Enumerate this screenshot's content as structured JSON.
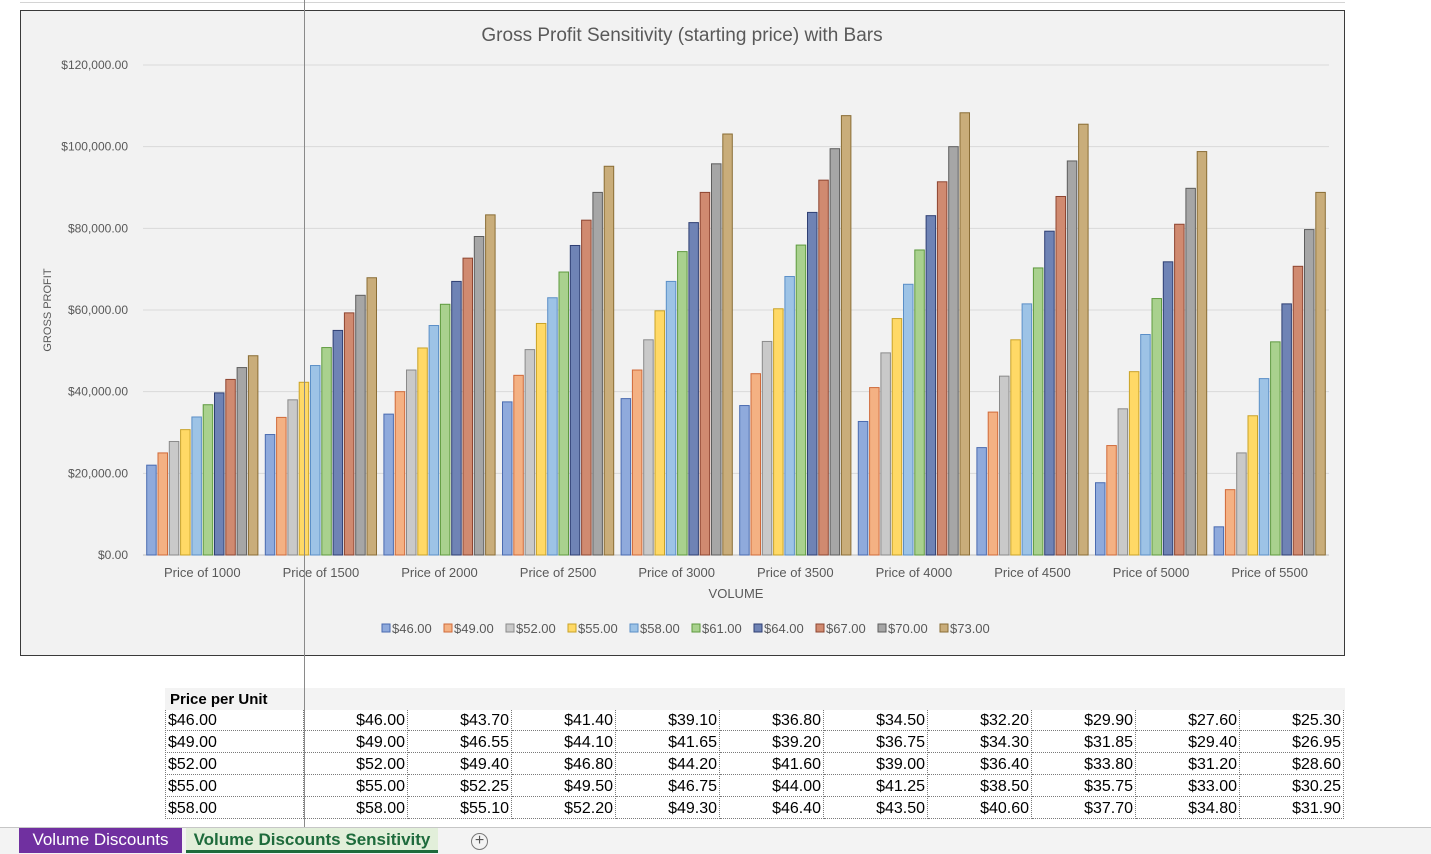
{
  "chart_data": {
    "type": "bar",
    "title": "Gross Profit Sensitivity (starting price) with Bars",
    "xlabel": "VOLUME",
    "ylabel": "GROSS PROFIT",
    "ylim": [
      0,
      120000
    ],
    "ytick_labels": [
      "$0.00",
      "$20,000.00",
      "$40,000.00",
      "$60,000.00",
      "$80,000.00",
      "$100,000.00",
      "$120,000.00"
    ],
    "grid": true,
    "legend_position": "bottom",
    "categories": [
      "Price of 1000",
      "Price of 1500",
      "Price of 2000",
      "Price of 2500",
      "Price of 3000",
      "Price of 3500",
      "Price of 4000",
      "Price of 4500",
      "Price of 5000",
      "Price of 5500"
    ],
    "series": [
      {
        "name": "$46.00",
        "color": "#8faadc",
        "stroke": "#4a6bb0",
        "values": [
          22000,
          29500,
          34500,
          37500,
          38300,
          36600,
          32700,
          26300,
          17700,
          6900
        ]
      },
      {
        "name": "$49.00",
        "color": "#f4b183",
        "stroke": "#d06a3a",
        "values": [
          25000,
          33700,
          40000,
          44000,
          45300,
          44400,
          41000,
          35000,
          26800,
          16000
        ]
      },
      {
        "name": "$52.00",
        "color": "#c9c9c9",
        "stroke": "#8a8a8a",
        "values": [
          27800,
          38000,
          45300,
          50300,
          52700,
          52300,
          49500,
          43800,
          35800,
          25000
        ]
      },
      {
        "name": "$55.00",
        "color": "#ffd966",
        "stroke": "#c9a227",
        "values": [
          30700,
          42300,
          50700,
          56700,
          59800,
          60300,
          57900,
          52700,
          44900,
          34100
        ]
      },
      {
        "name": "$58.00",
        "color": "#9dc3e6",
        "stroke": "#5b8fc7",
        "values": [
          33800,
          46400,
          56200,
          63000,
          67000,
          68200,
          66300,
          61500,
          54000,
          43200
        ]
      },
      {
        "name": "$61.00",
        "color": "#a9d18e",
        "stroke": "#5e9a3f",
        "values": [
          36800,
          50800,
          61400,
          69300,
          74300,
          75900,
          74700,
          70300,
          62800,
          52200
        ]
      },
      {
        "name": "$64.00",
        "color": "#6f83b5",
        "stroke": "#2f3f73",
        "values": [
          39700,
          55000,
          67000,
          75800,
          81400,
          83900,
          83100,
          79300,
          71800,
          61500
        ]
      },
      {
        "name": "$67.00",
        "color": "#d08a70",
        "stroke": "#8e4531",
        "values": [
          43000,
          59300,
          72700,
          82000,
          88800,
          91800,
          91400,
          87800,
          81000,
          70700
        ]
      },
      {
        "name": "$70.00",
        "color": "#a6a6a6",
        "stroke": "#5e5e5e",
        "values": [
          45900,
          63600,
          78000,
          88800,
          95800,
          99500,
          100000,
          96500,
          89800,
          79700
        ]
      },
      {
        "name": "$73.00",
        "color": "#c9ad7a",
        "stroke": "#8a6d35",
        "values": [
          48800,
          67900,
          83300,
          95200,
          103100,
          107600,
          108300,
          105500,
          98800,
          88800
        ]
      }
    ]
  },
  "table": {
    "header_label": "Price per Unit",
    "rows": [
      [
        "$46.00",
        "$46.00",
        "$43.70",
        "$41.40",
        "$39.10",
        "$36.80",
        "$34.50",
        "$32.20",
        "$29.90",
        "$27.60",
        "$25.30"
      ],
      [
        "$49.00",
        "$49.00",
        "$46.55",
        "$44.10",
        "$41.65",
        "$39.20",
        "$36.75",
        "$34.30",
        "$31.85",
        "$29.40",
        "$26.95"
      ],
      [
        "$52.00",
        "$52.00",
        "$49.40",
        "$46.80",
        "$44.20",
        "$41.60",
        "$39.00",
        "$36.40",
        "$33.80",
        "$31.20",
        "$28.60"
      ],
      [
        "$55.00",
        "$55.00",
        "$52.25",
        "$49.50",
        "$46.75",
        "$44.00",
        "$41.25",
        "$38.50",
        "$35.75",
        "$33.00",
        "$30.25"
      ],
      [
        "$58.00",
        "$58.00",
        "$55.10",
        "$52.20",
        "$49.30",
        "$46.40",
        "$43.50",
        "$40.60",
        "$37.70",
        "$34.80",
        "$31.90"
      ]
    ]
  },
  "sheet_tabs": {
    "tab1": "Volume Discounts",
    "tab2": "Volume Discounts Sensitivity",
    "add_icon": "+"
  }
}
